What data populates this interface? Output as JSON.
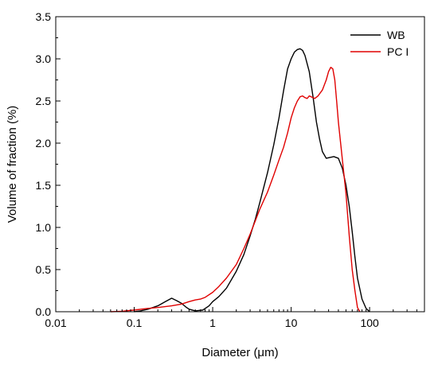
{
  "chart_data": {
    "type": "line",
    "title": "",
    "xlabel": "Diameter (μm)",
    "ylabel": "Volume of fraction (%)",
    "xscale": "log",
    "xlim": [
      0.01,
      500
    ],
    "ylim": [
      0,
      3.5
    ],
    "xticks": [
      0.01,
      0.1,
      1,
      10,
      100
    ],
    "xtick_labels": [
      "0.01",
      "0.1",
      "1",
      "10",
      "100"
    ],
    "yticks": [
      0,
      0.5,
      1.0,
      1.5,
      2.0,
      2.5,
      3.0,
      3.5
    ],
    "ytick_labels": [
      "0.0",
      "0.5",
      "1.0",
      "1.5",
      "2.0",
      "2.5",
      "3.0",
      "3.5"
    ],
    "legend_position": "top-right",
    "grid": false,
    "series": [
      {
        "name": "WB",
        "color": "#000000",
        "points": [
          [
            0.1,
            0.0
          ],
          [
            0.12,
            0.01
          ],
          [
            0.15,
            0.03
          ],
          [
            0.2,
            0.07
          ],
          [
            0.25,
            0.12
          ],
          [
            0.3,
            0.16
          ],
          [
            0.35,
            0.13
          ],
          [
            0.4,
            0.1
          ],
          [
            0.45,
            0.06
          ],
          [
            0.5,
            0.03
          ],
          [
            0.6,
            0.01
          ],
          [
            0.75,
            0.02
          ],
          [
            0.9,
            0.07
          ],
          [
            1.0,
            0.12
          ],
          [
            1.2,
            0.18
          ],
          [
            1.5,
            0.28
          ],
          [
            2.0,
            0.48
          ],
          [
            2.5,
            0.68
          ],
          [
            3.0,
            0.9
          ],
          [
            3.5,
            1.1
          ],
          [
            4.0,
            1.3
          ],
          [
            5.0,
            1.65
          ],
          [
            6.0,
            1.98
          ],
          [
            7.0,
            2.3
          ],
          [
            8.0,
            2.62
          ],
          [
            9.0,
            2.88
          ],
          [
            10.0,
            3.0
          ],
          [
            11.0,
            3.08
          ],
          [
            12.0,
            3.11
          ],
          [
            13.0,
            3.12
          ],
          [
            14.0,
            3.1
          ],
          [
            15.0,
            3.04
          ],
          [
            17.0,
            2.85
          ],
          [
            19.0,
            2.55
          ],
          [
            21.0,
            2.25
          ],
          [
            23.0,
            2.05
          ],
          [
            25.0,
            1.9
          ],
          [
            28.0,
            1.82
          ],
          [
            31.0,
            1.83
          ],
          [
            35.0,
            1.84
          ],
          [
            40.0,
            1.82
          ],
          [
            45.0,
            1.7
          ],
          [
            50.0,
            1.5
          ],
          [
            55.0,
            1.25
          ],
          [
            60.0,
            0.95
          ],
          [
            65.0,
            0.65
          ],
          [
            70.0,
            0.4
          ],
          [
            80.0,
            0.15
          ],
          [
            90.0,
            0.04
          ],
          [
            100.0,
            0.0
          ]
        ]
      },
      {
        "name": "PC I",
        "color": "#e00000",
        "points": [
          [
            0.05,
            0.0
          ],
          [
            0.07,
            0.005
          ],
          [
            0.1,
            0.02
          ],
          [
            0.15,
            0.04
          ],
          [
            0.2,
            0.05
          ],
          [
            0.3,
            0.07
          ],
          [
            0.4,
            0.09
          ],
          [
            0.5,
            0.12
          ],
          [
            0.6,
            0.14
          ],
          [
            0.7,
            0.15
          ],
          [
            0.8,
            0.17
          ],
          [
            1.0,
            0.23
          ],
          [
            1.2,
            0.3
          ],
          [
            1.5,
            0.4
          ],
          [
            2.0,
            0.56
          ],
          [
            2.5,
            0.75
          ],
          [
            3.0,
            0.92
          ],
          [
            3.5,
            1.08
          ],
          [
            4.0,
            1.22
          ],
          [
            5.0,
            1.42
          ],
          [
            6.0,
            1.62
          ],
          [
            7.0,
            1.8
          ],
          [
            8.0,
            1.95
          ],
          [
            9.0,
            2.12
          ],
          [
            10.0,
            2.3
          ],
          [
            11.0,
            2.42
          ],
          [
            12.0,
            2.5
          ],
          [
            13.0,
            2.55
          ],
          [
            14.0,
            2.56
          ],
          [
            15.0,
            2.54
          ],
          [
            16.0,
            2.53
          ],
          [
            17.0,
            2.56
          ],
          [
            18.0,
            2.55
          ],
          [
            20.0,
            2.53
          ],
          [
            22.0,
            2.56
          ],
          [
            25.0,
            2.63
          ],
          [
            28.0,
            2.75
          ],
          [
            30.0,
            2.85
          ],
          [
            32.0,
            2.9
          ],
          [
            34.0,
            2.88
          ],
          [
            36.0,
            2.75
          ],
          [
            38.0,
            2.5
          ],
          [
            40.0,
            2.25
          ],
          [
            45.0,
            1.8
          ],
          [
            50.0,
            1.4
          ],
          [
            55.0,
            0.9
          ],
          [
            60.0,
            0.5
          ],
          [
            65.0,
            0.25
          ],
          [
            70.0,
            0.05
          ],
          [
            75.0,
            0.0
          ]
        ]
      }
    ]
  }
}
